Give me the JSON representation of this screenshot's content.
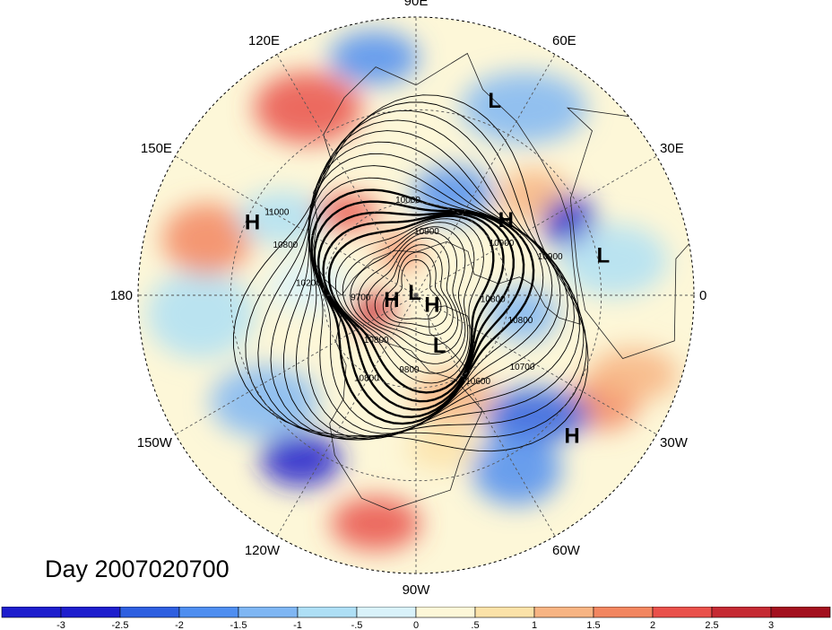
{
  "title": "Day 2007020700",
  "longitude_labels": [
    {
      "text": "90E",
      "lon": 90
    },
    {
      "text": "60E",
      "lon": 60
    },
    {
      "text": "30E",
      "lon": 30
    },
    {
      "text": "0",
      "lon": 0
    },
    {
      "text": "30W",
      "lon": -30
    },
    {
      "text": "60W",
      "lon": -60
    },
    {
      "text": "90W",
      "lon": -90
    },
    {
      "text": "120W",
      "lon": -120
    },
    {
      "text": "150W",
      "lon": -150
    },
    {
      "text": "180",
      "lon": 180
    },
    {
      "text": "150E",
      "lon": 150
    },
    {
      "text": "120E",
      "lon": 120
    }
  ],
  "pressure_systems": [
    {
      "type": "L",
      "lon": 68,
      "lat": 22
    },
    {
      "type": "H",
      "lon": 40,
      "lat": 52
    },
    {
      "type": "L",
      "lon": 12,
      "lat": 28
    },
    {
      "type": "H",
      "lon": 156,
      "lat": 32
    },
    {
      "type": "L",
      "lon": 115,
      "lat": 89
    },
    {
      "type": "H",
      "lon": -170,
      "lat": 82
    },
    {
      "type": "H",
      "lon": -30,
      "lat": 84
    },
    {
      "type": "L",
      "lon": -65,
      "lat": 72
    },
    {
      "type": "H",
      "lon": -42,
      "lat": 22
    }
  ],
  "contour_labels": [
    "10900",
    "10900",
    "10900",
    "10800",
    "10000",
    "11000",
    "10800",
    "10200",
    "9700",
    "10800",
    "9800",
    "10600",
    "10800",
    "10800",
    "10700"
  ],
  "colorbar": {
    "ticks": [
      "-3",
      "-2.5",
      "-2",
      "-1.5",
      "-1",
      "-.5",
      "0",
      ".5",
      "1",
      "1.5",
      "2",
      "2.5",
      "3"
    ],
    "colors": [
      "#1e1ecd",
      "#2e5fe0",
      "#4f8ef0",
      "#7fb6f3",
      "#aedff5",
      "#d9f2fa",
      "#fdf7d8",
      "#fbe2a8",
      "#f7b483",
      "#f28660",
      "#e9514b",
      "#c52a33",
      "#a3111f"
    ]
  },
  "colors": {
    "warm": "#e9514b",
    "cold": "#2e5fe0",
    "neutral": "#fdf7d8"
  }
}
